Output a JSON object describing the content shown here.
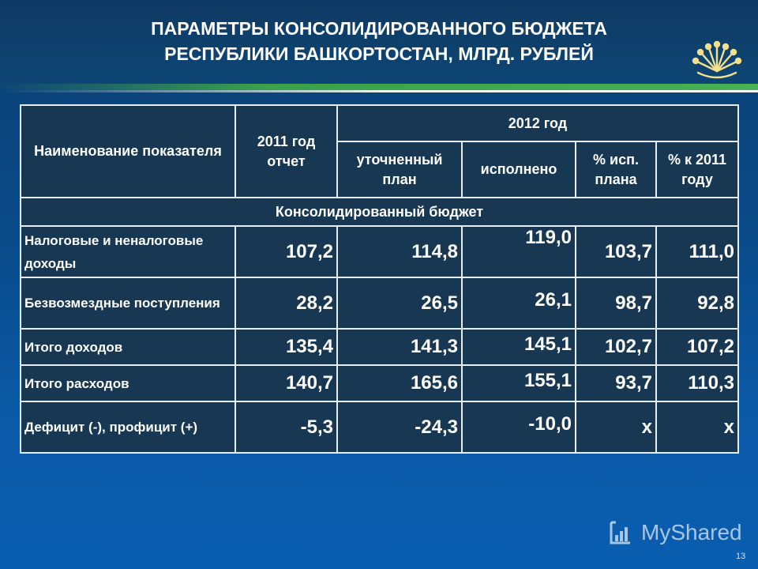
{
  "title": {
    "line1": "ПАРАМЕТРЫ КОНСОЛИДИРОВАННОГО БЮДЖЕТА",
    "line2": "РЕСПУБЛИКИ БАШКОРТОСТАН, МЛРД. РУБЛЕЙ"
  },
  "table": {
    "headers": {
      "indicator": "Наименование показателя",
      "y2011": "2011 год отчет",
      "y2012": "2012 год",
      "plan": "уточненный план",
      "done": "исполнено",
      "pct_plan": "% исп. плана",
      "pct_2011": "% к 2011 году"
    },
    "section": "Консолидированный бюджет",
    "rows": [
      {
        "label": "Налоговые и неналоговые доходы",
        "y2011": "107,2",
        "plan": "114,8",
        "done": "119,0",
        "pct_plan": "103,7",
        "pct_2011": "111,0"
      },
      {
        "label": "Безвозмездные поступления",
        "y2011": "28,2",
        "plan": "26,5",
        "done": "26,1",
        "pct_plan": "98,7",
        "pct_2011": "92,8"
      },
      {
        "label": "Итого доходов",
        "y2011": "135,4",
        "plan": "141,3",
        "done": "145,1",
        "pct_plan": "102,7",
        "pct_2011": "107,2"
      },
      {
        "label": "Итого расходов",
        "y2011": "140,7",
        "plan": "165,6",
        "done": "155,1",
        "pct_plan": "93,7",
        "pct_2011": "110,3"
      },
      {
        "label": "Дефицит (-), профицит (+)",
        "y2011": "-5,3",
        "plan": "-24,3",
        "done": "-10,0",
        "pct_plan": "х",
        "pct_2011": "х"
      }
    ]
  },
  "watermark": "MyShared",
  "slide_number": "13",
  "colors": {
    "background": "#0b4f94",
    "table_bg": "#173752",
    "stripe": "#3aa14a",
    "emblem": "#f2e08a"
  },
  "icons": {
    "emblem": "kurai-flower-emblem-icon",
    "watermark": "myshared-logo-icon"
  }
}
